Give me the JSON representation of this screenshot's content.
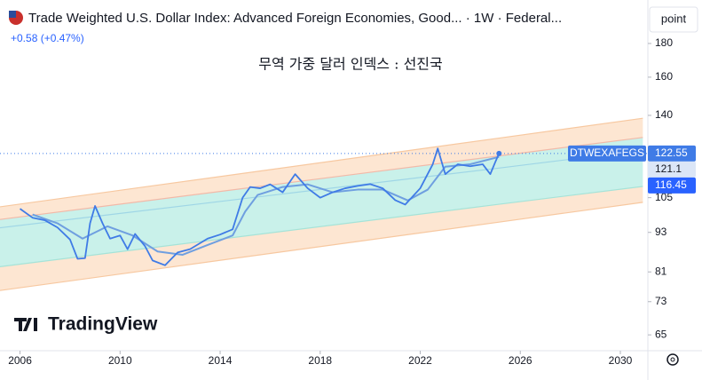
{
  "chart_data": {
    "type": "line",
    "title": "Trade Weighted U.S. Dollar Index: Advanced Foreign Economies, Good... · 1W · Federal...",
    "change": "+0.58 (+0.47%)",
    "annotation": "무역 가중 달러 인덱스 : 선진국",
    "scale_button": "point",
    "brand": "TradingView",
    "log_scale": true,
    "xlim": [
      2005.2,
      2031.1
    ],
    "xticks": [
      2006,
      2010,
      2014,
      2018,
      2022,
      2026,
      2030
    ],
    "ylim": [
      61.5,
      204.4
    ],
    "yticks": [
      65,
      73,
      81,
      93,
      105,
      140,
      160,
      180
    ],
    "series": [
      {
        "name": "DTWEXAFEGS",
        "color": "#3f7be6",
        "x": [
          2006.0,
          2006.5,
          2007.0,
          2007.5,
          2008.0,
          2008.3,
          2008.6,
          2008.8,
          2009.0,
          2009.3,
          2009.6,
          2010.0,
          2010.3,
          2010.6,
          2011.0,
          2011.3,
          2011.8,
          2012.3,
          2012.8,
          2013.5,
          2014.0,
          2014.5,
          2014.9,
          2015.2,
          2015.6,
          2016.0,
          2016.5,
          2017.0,
          2017.5,
          2018.0,
          2018.5,
          2019.0,
          2019.5,
          2020.0,
          2020.5,
          2021.0,
          2021.4,
          2022.0,
          2022.5,
          2022.7,
          2023.0,
          2023.5,
          2024.0,
          2024.5,
          2024.8,
          2025.0,
          2025.15
        ],
        "values": [
          101,
          97.9,
          97,
          94.6,
          90.7,
          84.8,
          85,
          96,
          102,
          96,
          91,
          92,
          87.7,
          92.5,
          88.6,
          84.3,
          82.9,
          86.7,
          87.7,
          91,
          92.3,
          94,
          105,
          109,
          108.5,
          110,
          107,
          114,
          108.5,
          105,
          107,
          108.5,
          109.4,
          110.1,
          108.5,
          104.1,
          102.5,
          108.5,
          118,
          124.7,
          114,
          118,
          117.2,
          118,
          114,
          118.9,
          122.55
        ]
      },
      {
        "color": "#6f9fe0",
        "x": [
          2006.5,
          2007.5,
          2008.5,
          2009.5,
          2010.5,
          2011.5,
          2012.5,
          2013.5,
          2014.5,
          2015.0,
          2015.5,
          2016.5,
          2017.5,
          2018.5,
          2019.5,
          2020.5,
          2021.5,
          2022.3,
          2023.0,
          2024.0,
          2025.15
        ],
        "values": [
          99,
          96,
          91,
          95,
          92,
          87,
          86,
          89,
          92,
          100,
          106,
          109,
          110,
          107,
          108,
          108,
          104,
          108,
          117,
          118,
          121.1
        ]
      }
    ],
    "channel": {
      "x": [
        2005.2,
        2025.15,
        2030.9
      ],
      "lines": [
        {
          "color": "#f7c8a0",
          "values": [
            101.7,
            129.3,
            138.6
          ]
        },
        {
          "color": "#f2b9a8",
          "values": [
            97.3,
            121.5,
            129.6
          ]
        },
        {
          "color": "#9fd6e6",
          "values": [
            94.5,
            116.45,
            123.9
          ]
        },
        {
          "color": "#a6e3d8",
          "values": [
            82.5,
            102.6,
            109.2
          ]
        },
        {
          "color": "#f7c8a0",
          "values": [
            75.9,
            96.4,
            103.3
          ]
        }
      ],
      "band_fills": [
        "#fde6d2",
        "#c9f1ea",
        "#c9f1ea",
        "#fde6d2"
      ]
    }
  }
}
